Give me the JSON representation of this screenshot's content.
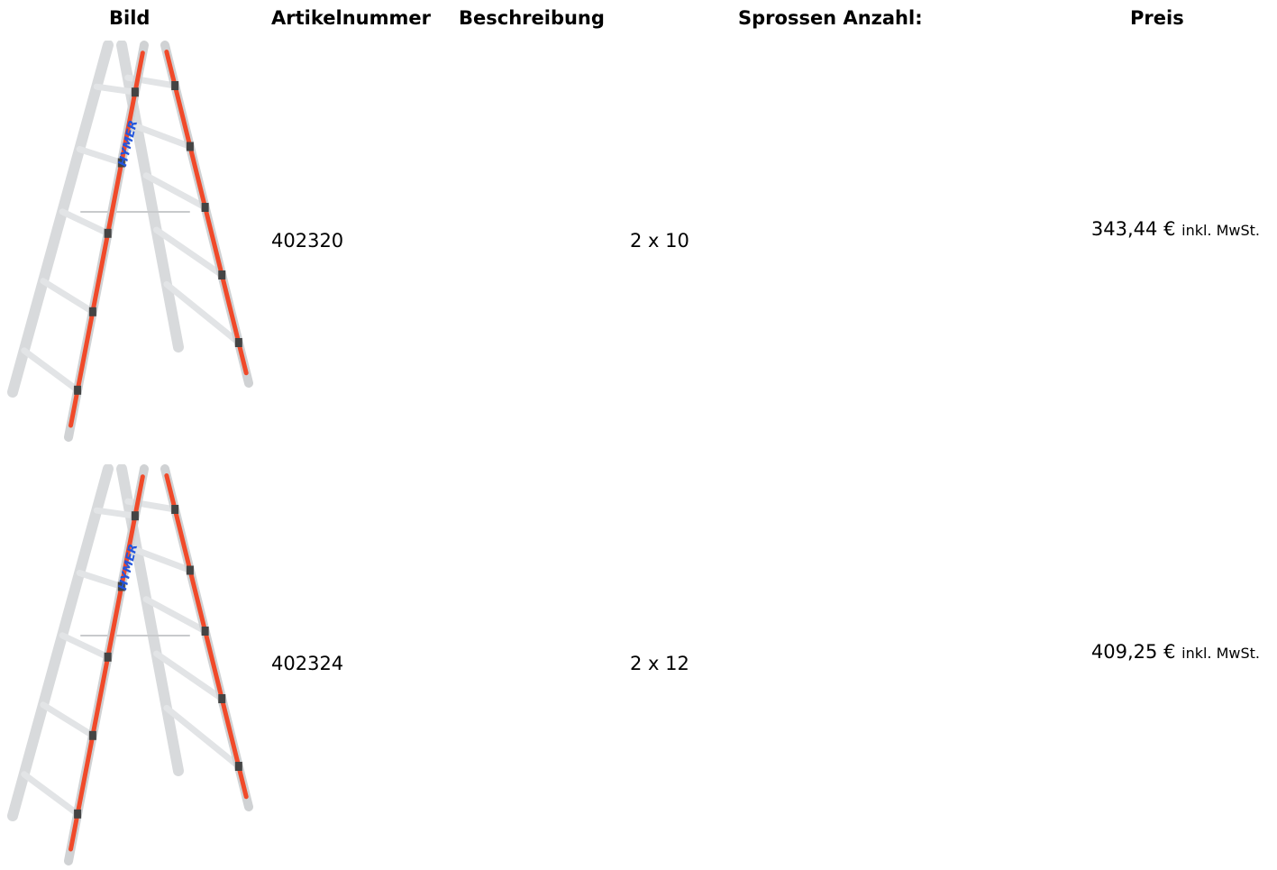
{
  "header": {
    "columns": [
      "Bild",
      "Artikelnummer",
      "Beschreibung",
      "Sprossen Anzahl:",
      "Preis"
    ]
  },
  "table": {
    "rows": [
      {
        "image_brand": "HYMER",
        "article": "402320",
        "rungs": "2 x 10",
        "price": "343,44 €",
        "tax_note": "inkl. MwSt."
      },
      {
        "image_brand": "HYMER",
        "article": "402324",
        "rungs": "2 x 12",
        "price": "409,25 €",
        "tax_note": "inkl. MwSt."
      }
    ]
  }
}
